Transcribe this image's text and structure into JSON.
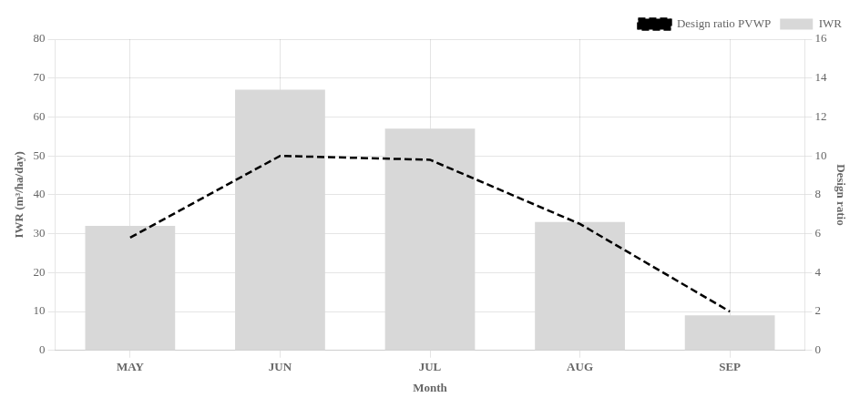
{
  "chart_data": {
    "type": "bar",
    "xlabel": "Month",
    "ylabel": "IWR (m³/ha/day)",
    "y2label": "Design ratio",
    "categories": [
      "MAY",
      "JUN",
      "JUL",
      "AUG",
      "SEP"
    ],
    "series": [
      {
        "name": "IWR",
        "type": "bar",
        "color": "#d8d8d8",
        "values": [
          32,
          67,
          57,
          33,
          9
        ]
      },
      {
        "name": "Design ratio PVWP",
        "type": "line",
        "color": "#000000",
        "line_style": "dashed",
        "marker": "none",
        "axis": "y2",
        "values": [
          5.8,
          10.0,
          9.8,
          6.5,
          2.0
        ]
      }
    ],
    "ylim": [
      0,
      80
    ],
    "yticks": [
      0,
      10,
      20,
      30,
      40,
      50,
      60,
      70,
      80
    ],
    "y2lim": [
      0,
      16
    ],
    "y2ticks": [
      0,
      2,
      4,
      6,
      8,
      10,
      12,
      14,
      16
    ],
    "grid": true,
    "legend": "upper right"
  }
}
